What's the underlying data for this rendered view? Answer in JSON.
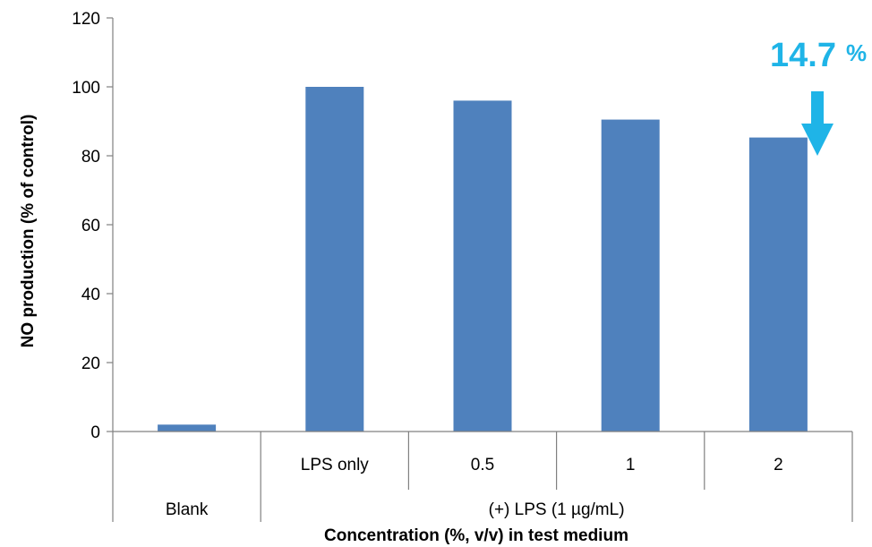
{
  "chart_data": {
    "type": "bar",
    "categories": [
      "Blank",
      "LPS only",
      "0.5",
      "1",
      "2"
    ],
    "values": [
      2,
      100,
      96,
      90.5,
      85.3
    ],
    "group_labels": [
      {
        "label": "Blank",
        "categories": [
          "Blank"
        ]
      },
      {
        "label": "(+) LPS (1 µg/mL)",
        "categories": [
          "LPS only",
          "0.5",
          "1",
          "2"
        ]
      }
    ],
    "title": "",
    "xlabel": "Concentration (%, v/v)  in test medium",
    "ylabel": "NO production (% of control)",
    "ylim": [
      0,
      120
    ],
    "yticks": [
      "0",
      "20",
      "40",
      "60",
      "80",
      "100",
      "120"
    ],
    "grid": false,
    "bar_color": "#4f81bd",
    "annotation": {
      "value": "14.7",
      "unit": "%",
      "color": "#1fb4e7",
      "icon": "down-arrow-icon",
      "target_category": "2"
    }
  }
}
